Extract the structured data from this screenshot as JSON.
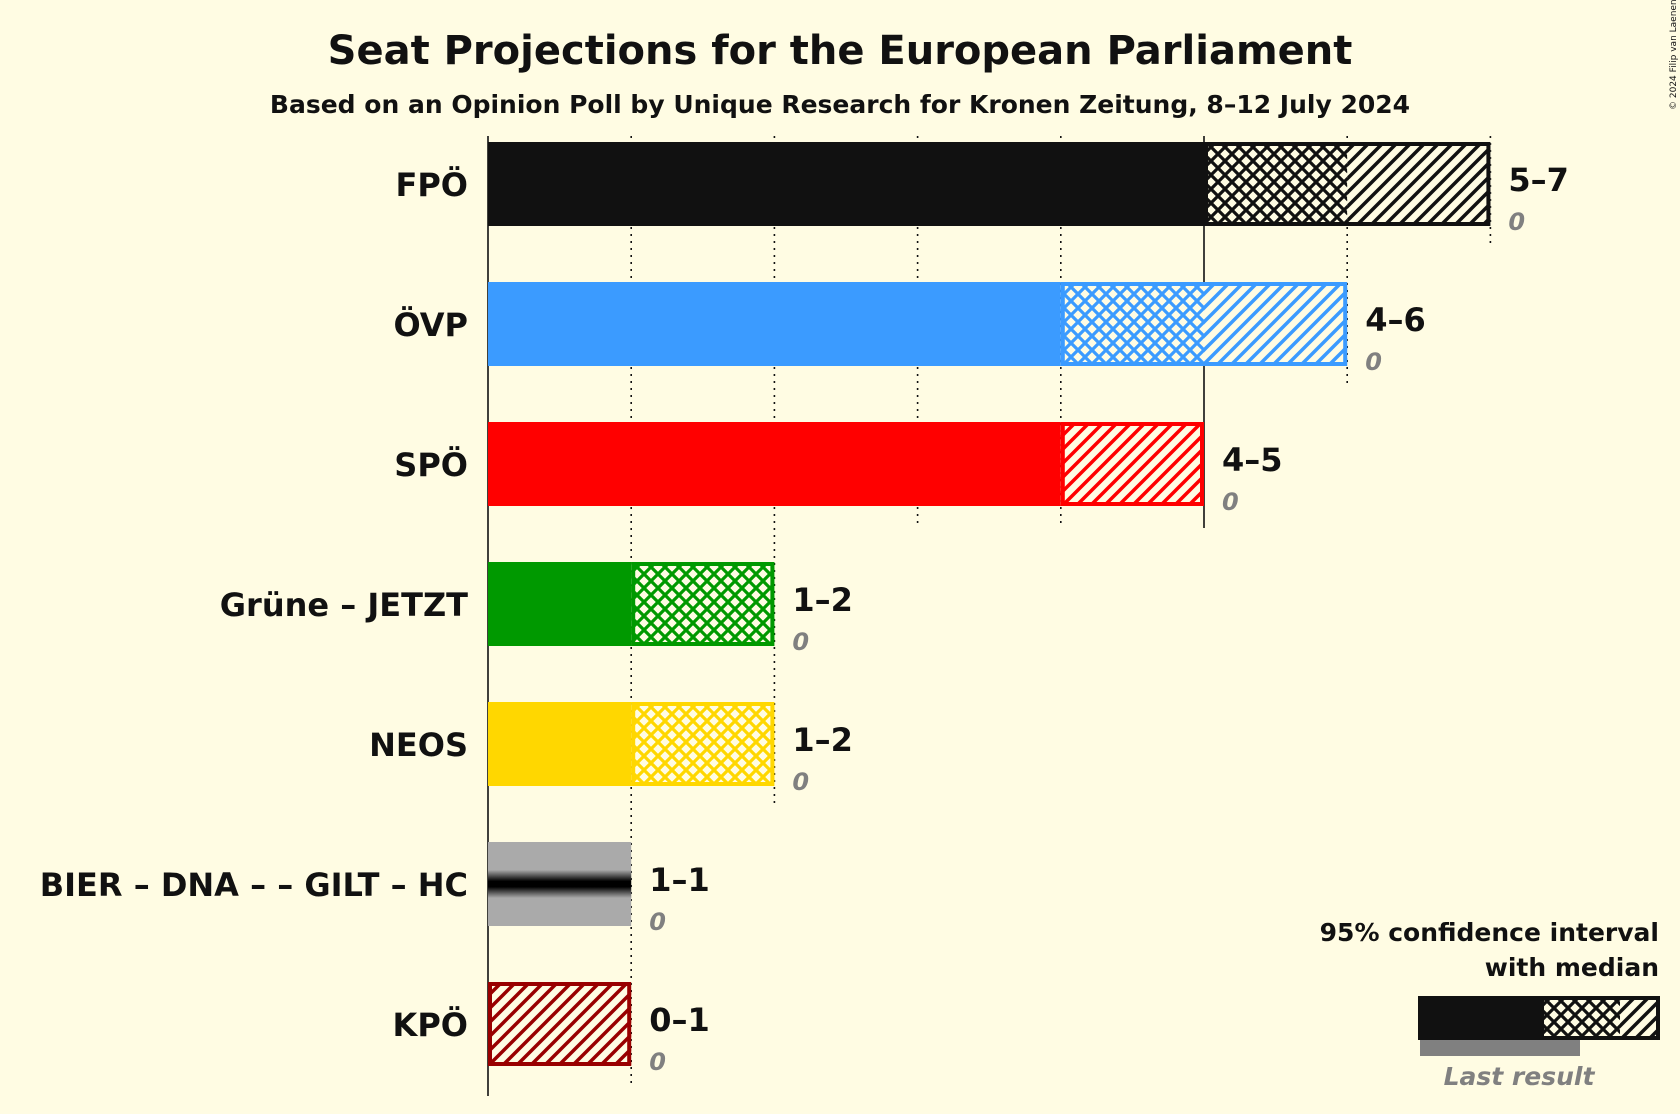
{
  "chart_data": {
    "type": "bar",
    "orientation": "horizontal",
    "title": "Seat Projections for the European Parliament",
    "subtitle": "Based on an Opinion Poll by Unique Research for Kronen Zeitung, 8–12 July 2024",
    "x_range": [
      0,
      7
    ],
    "grid": true,
    "legend_placement": "bottom-right",
    "parties": [
      {
        "name": "FPÖ",
        "low": 5,
        "median": 6,
        "high": 7,
        "range_label": "5–7",
        "last_result": "0",
        "color": "#111111",
        "style": "normal"
      },
      {
        "name": "ÖVP",
        "low": 4,
        "median": 5,
        "high": 6,
        "range_label": "4–6",
        "last_result": "0",
        "color": "#3B9BFF",
        "style": "normal"
      },
      {
        "name": "SPÖ",
        "low": 4,
        "median": 4,
        "high": 5,
        "range_label": "4–5",
        "last_result": "0",
        "color": "#FF0000",
        "style": "normal"
      },
      {
        "name": "Grüne – JETZT",
        "low": 1,
        "median": 2,
        "high": 2,
        "range_label": "1–2",
        "last_result": "0",
        "color": "#009900",
        "style": "normal"
      },
      {
        "name": "NEOS",
        "low": 1,
        "median": 2,
        "high": 2,
        "range_label": "1–2",
        "last_result": "0",
        "color": "#FFD700",
        "style": "normal"
      },
      {
        "name": "BIER – DNA – – GILT – HC",
        "low": 1,
        "median": 1,
        "high": 1,
        "range_label": "1–1",
        "last_result": "0",
        "color": "#AAAAAA",
        "style": "grey"
      },
      {
        "name": "KPÖ",
        "low": 0,
        "median": 0,
        "high": 1,
        "range_label": "0–1",
        "last_result": "0",
        "color": "#990000",
        "style": "outline"
      }
    ],
    "legend": {
      "line1": "95% confidence interval",
      "line2": "with median",
      "last_result_label": "Last result"
    },
    "copyright": "© 2024 Filip van Laenen"
  }
}
